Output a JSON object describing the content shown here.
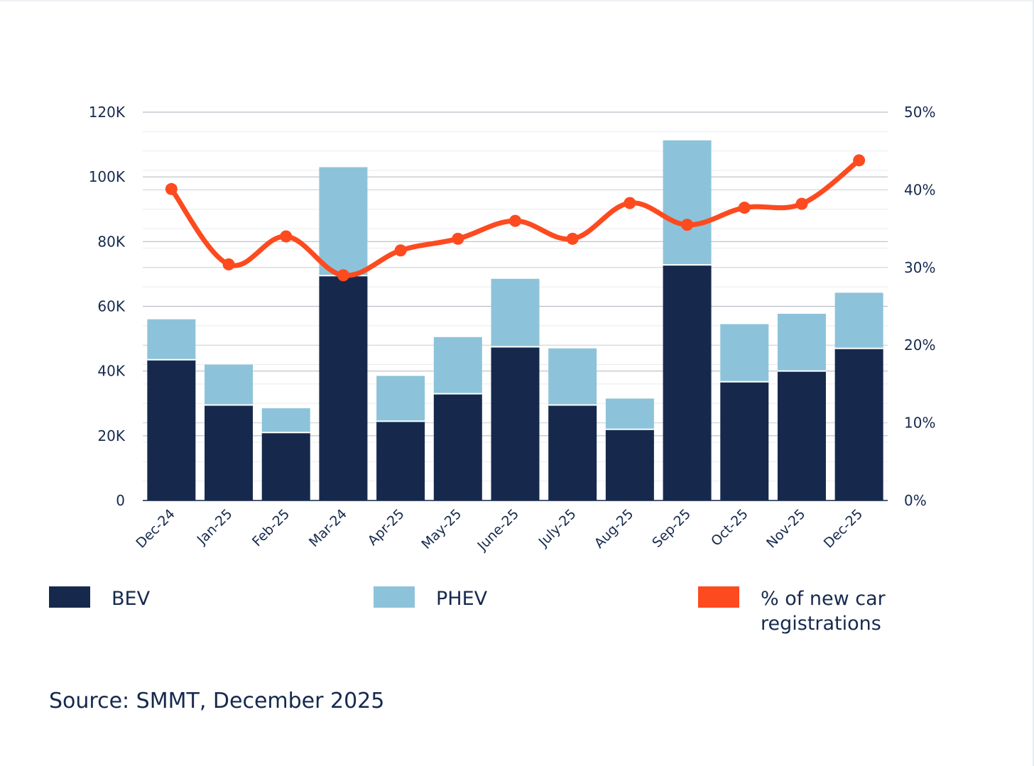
{
  "chart_data": {
    "type": "bar",
    "stacked": true,
    "categories": [
      "Dec-24",
      "Jan-25",
      "Feb-25",
      "Mar-24",
      "Apr-25",
      "May-25",
      "June-25",
      "July-25",
      "Aug-25",
      "Sep-25",
      "Oct-25",
      "Nov-25",
      "Dec-25"
    ],
    "series": [
      {
        "name": "BEV",
        "type": "bar",
        "axis": "left",
        "color": "#16294d",
        "values": [
          43500,
          29500,
          21000,
          69500,
          24500,
          33000,
          47500,
          29500,
          22000,
          72800,
          36700,
          40000,
          47000
        ]
      },
      {
        "name": "PHEV",
        "type": "bar",
        "axis": "left",
        "color": "#8cc3da",
        "values": [
          12500,
          12500,
          7500,
          33500,
          14000,
          17500,
          21000,
          17500,
          9500,
          38500,
          17800,
          17700,
          17200
        ]
      },
      {
        "name": "% of new car registrations",
        "type": "line",
        "axis": "right",
        "color": "#fd4a1f",
        "values": [
          40.1,
          30.4,
          34.0,
          29.0,
          32.2,
          33.7,
          36.0,
          33.7,
          38.3,
          35.5,
          37.7,
          38.2,
          43.8
        ]
      }
    ],
    "y_left": {
      "ticks": [
        "0",
        "20K",
        "40K",
        "60K",
        "80K",
        "100K",
        "120K"
      ],
      "ylim": [
        0,
        120000
      ]
    },
    "y_right": {
      "ticks": [
        "0%",
        "10%",
        "20%",
        "30%",
        "40%",
        "50%"
      ],
      "ylim": [
        0,
        50
      ]
    },
    "grid": true
  },
  "legend": {
    "bev_label": "BEV",
    "phev_label": "PHEV",
    "pct_label": "% of new car registrations"
  },
  "source": "Source: SMMT, December 2025"
}
